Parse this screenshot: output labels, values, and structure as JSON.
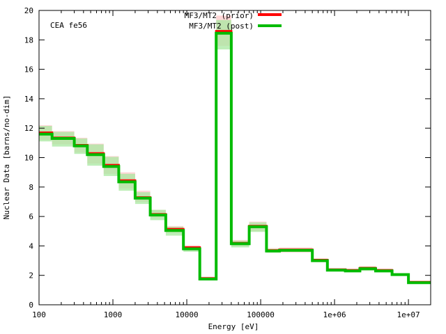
{
  "chart_data": {
    "type": "line",
    "style": "step",
    "annotation": "CEA fe56",
    "xlabel": "Energy [eV]",
    "ylabel": "Nuclear Data [barns/no-dim]",
    "x_scale": "log",
    "xlim": [
      100,
      20000000
    ],
    "ylim": [
      0,
      20
    ],
    "x_ticks": [
      {
        "value": 100,
        "label": "100"
      },
      {
        "value": 1000,
        "label": "1000"
      },
      {
        "value": 10000,
        "label": "10000"
      },
      {
        "value": 100000,
        "label": "100000"
      },
      {
        "value": 1000000,
        "label": "1e+06"
      },
      {
        "value": 10000000,
        "label": "1e+07"
      }
    ],
    "y_ticks": [
      0,
      2,
      4,
      6,
      8,
      10,
      12,
      14,
      16,
      18,
      20
    ],
    "grid": false,
    "legend_position": "top-center",
    "bin_edges": [
      100,
      150,
      300,
      450,
      750,
      1200,
      2000,
      3200,
      5200,
      9000,
      15000,
      25000,
      40000,
      70000,
      120000,
      180000,
      500000,
      800000,
      1400000,
      2200000,
      3600000,
      6000000,
      10000000,
      20000000
    ],
    "series": [
      {
        "name": "MF3/MT2 (prior)",
        "color": "#ff0000",
        "values": [
          11.7,
          11.35,
          10.85,
          10.3,
          9.5,
          8.45,
          7.3,
          6.15,
          5.15,
          3.9,
          1.8,
          18.6,
          4.2,
          5.35,
          3.7,
          3.75,
          3.05,
          2.4,
          2.35,
          2.5,
          2.35,
          2.05,
          1.55
        ]
      },
      {
        "name": "MF3/MT2 (post)",
        "color": "#00bb00",
        "values": [
          11.6,
          11.3,
          10.8,
          10.2,
          9.4,
          8.35,
          7.25,
          6.1,
          5.05,
          3.8,
          1.75,
          18.45,
          4.15,
          5.3,
          3.65,
          3.7,
          3.0,
          2.35,
          2.3,
          2.45,
          2.3,
          2.05,
          1.5
        ]
      }
    ],
    "uncertainty": {
      "prior": {
        "color": "#ffbbbb",
        "lower": [
          11.2,
          10.9,
          10.35,
          9.6,
          8.9,
          7.9,
          7.0,
          5.9,
          4.9,
          3.7,
          1.7,
          17.6,
          4.0,
          5.0,
          3.55,
          3.55,
          2.9,
          2.3,
          2.25,
          2.35,
          2.25,
          2.0,
          1.45
        ],
        "upper": [
          12.2,
          11.8,
          11.35,
          10.95,
          10.1,
          9.0,
          7.75,
          6.45,
          5.35,
          4.05,
          1.9,
          19.65,
          4.4,
          5.65,
          3.85,
          3.9,
          3.15,
          2.45,
          2.45,
          2.6,
          2.45,
          2.15,
          1.6
        ]
      },
      "post": {
        "color": "#a8e8a0",
        "lower": [
          11.1,
          10.75,
          10.25,
          9.45,
          8.75,
          7.75,
          6.85,
          5.75,
          4.7,
          3.6,
          1.65,
          17.35,
          3.9,
          4.95,
          3.55,
          3.6,
          2.95,
          2.3,
          2.25,
          2.3,
          2.2,
          2.0,
          1.45
        ],
        "upper": [
          12.15,
          11.75,
          11.3,
          10.9,
          10.05,
          8.9,
          7.65,
          6.45,
          5.3,
          3.95,
          1.85,
          19.35,
          4.35,
          5.6,
          3.8,
          3.8,
          3.1,
          2.45,
          2.4,
          2.6,
          2.4,
          2.15,
          1.6
        ]
      }
    }
  }
}
